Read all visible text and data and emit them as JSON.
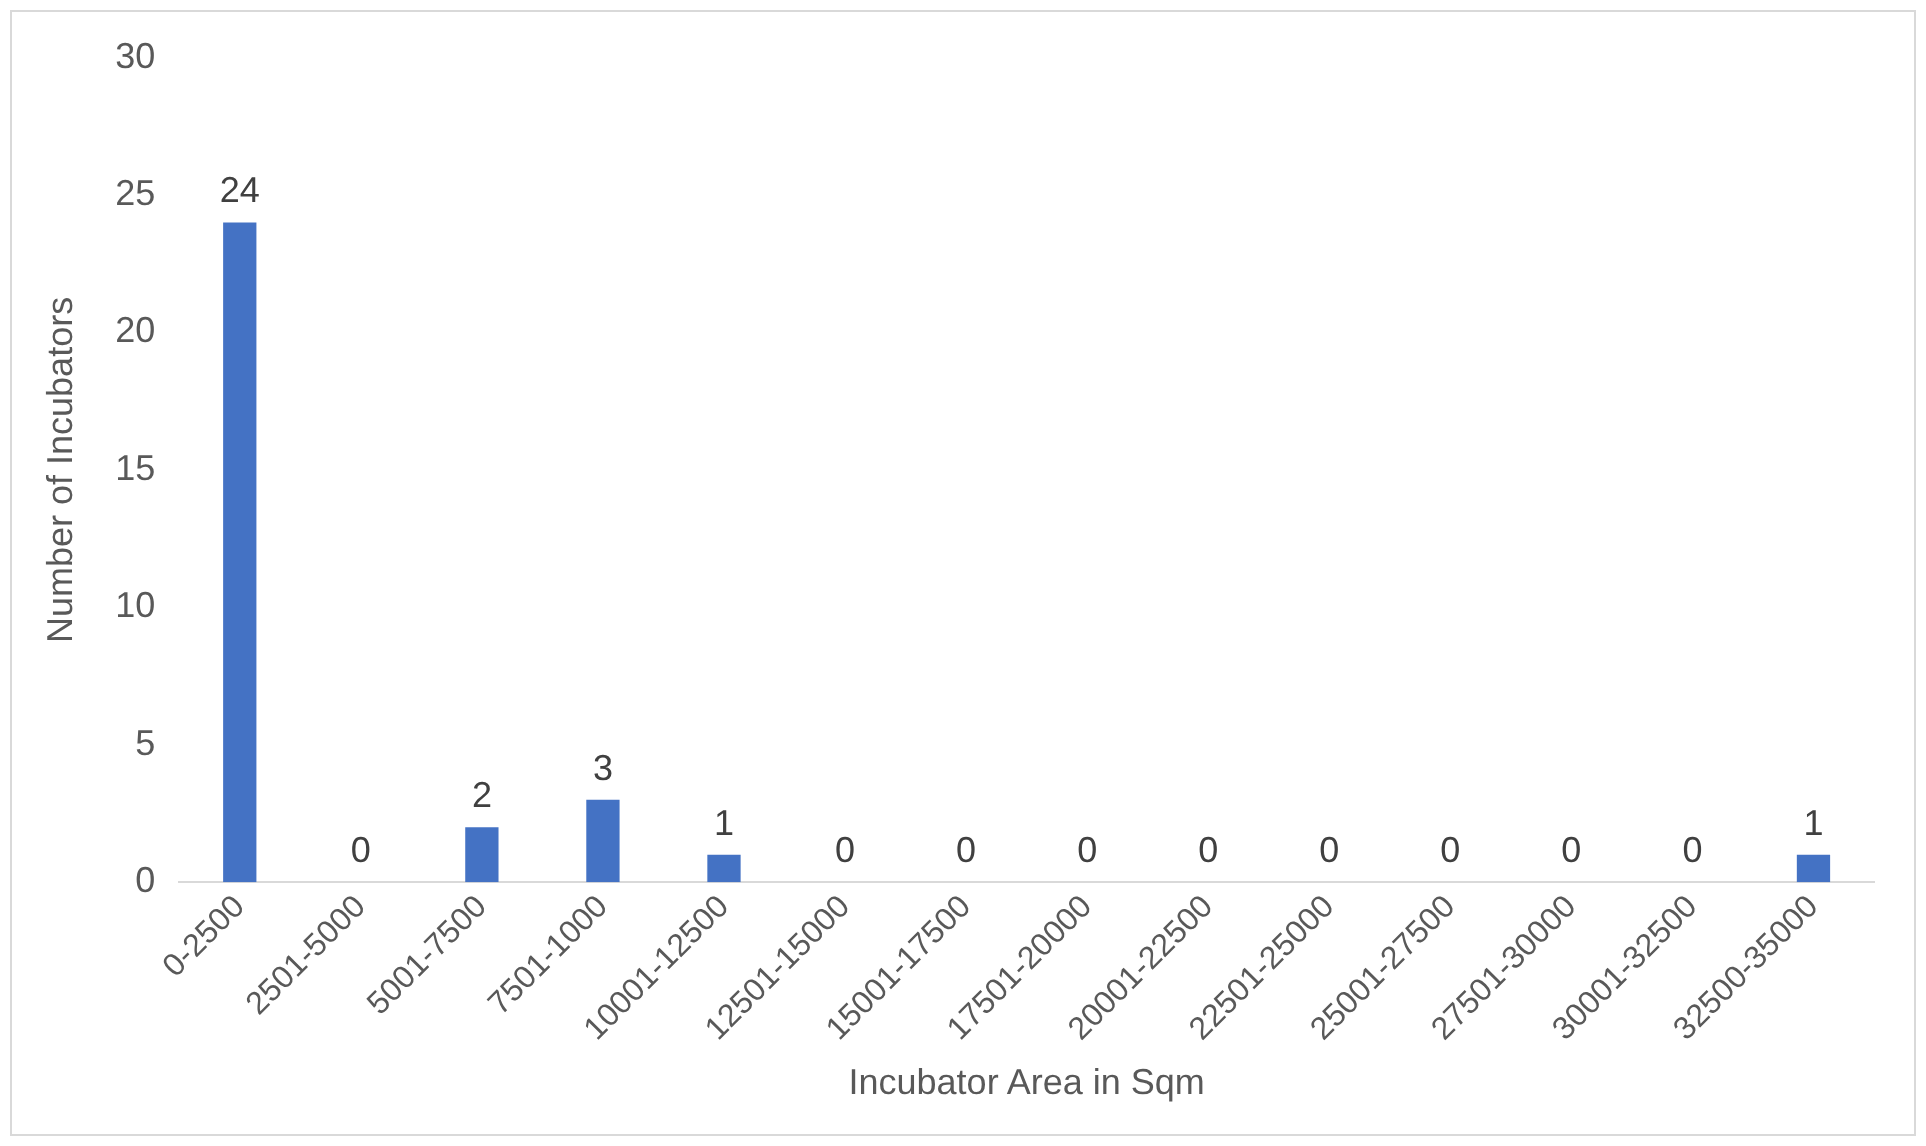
{
  "chart_data": {
    "type": "bar",
    "xlabel": "Incubator Area in Sqm",
    "ylabel": "Number of Incubators",
    "categories": [
      "0-2500",
      "2501-5000",
      "5001-7500",
      "7501-1000",
      "10001-12500",
      "12501-15000",
      "15001-17500",
      "17501-20000",
      "20001-22500",
      "22501-25000",
      "25001-27500",
      "27501-30000",
      "30001-32500",
      "32500-35000"
    ],
    "values": [
      24,
      0,
      2,
      3,
      1,
      0,
      0,
      0,
      0,
      0,
      0,
      0,
      0,
      1
    ],
    "color": "#4472c4",
    "ylim": [
      0,
      30
    ],
    "yticks": [
      0,
      5,
      10,
      15,
      20,
      25,
      30
    ],
    "grid": false,
    "legend": false,
    "data_labels": true
  }
}
